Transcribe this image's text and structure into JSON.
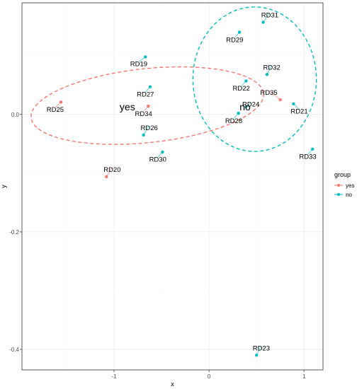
{
  "chart_data": {
    "type": "scatter",
    "xlabel": "x",
    "ylabel": "y",
    "xlim": [
      -1.97,
      1.2
    ],
    "ylim": [
      -0.435,
      0.19
    ],
    "x_ticks": [
      {
        "value": -1,
        "label": "-1"
      },
      {
        "value": 0,
        "label": "0"
      },
      {
        "value": 1,
        "label": "1"
      }
    ],
    "y_ticks": [
      {
        "value": 0.0,
        "label": "0.0"
      },
      {
        "value": -0.2,
        "label": "-0.2"
      },
      {
        "value": -0.4,
        "label": "-0.4"
      }
    ],
    "grid": true,
    "legend": {
      "title": "group",
      "placement": "right",
      "entries": [
        {
          "key": "yes",
          "label": "yes",
          "color": "#F8766D"
        },
        {
          "key": "no",
          "label": "no",
          "color": "#00BFC4"
        }
      ]
    },
    "series": [
      {
        "name": "yes",
        "color": "#F8766D",
        "points": [
          {
            "label": "RD25",
            "x": -1.56,
            "y": 0.021
          },
          {
            "label": "RD34",
            "x": -0.64,
            "y": 0.014
          },
          {
            "label": "RD20",
            "x": -1.08,
            "y": -0.106
          },
          {
            "label": "RD35",
            "x": 0.75,
            "y": 0.025
          }
        ],
        "ellipse": {
          "cx": -0.65,
          "cy": 0.015,
          "rx": 1.23,
          "ry": 0.063,
          "angle_deg": -6
        }
      },
      {
        "name": "no",
        "color": "#00BFC4",
        "points": [
          {
            "label": "RD31",
            "x": 0.57,
            "y": 0.157
          },
          {
            "label": "RD29",
            "x": 0.32,
            "y": 0.14
          },
          {
            "label": "RD19",
            "x": -0.67,
            "y": 0.098
          },
          {
            "label": "RD32",
            "x": 0.61,
            "y": 0.068
          },
          {
            "label": "RD22",
            "x": 0.39,
            "y": 0.057
          },
          {
            "label": "RD27",
            "x": -0.62,
            "y": 0.047
          },
          {
            "label": "RD24",
            "x": 0.39,
            "y": 0.013
          },
          {
            "label": "RD21",
            "x": 0.89,
            "y": 0.018
          },
          {
            "label": "RD28",
            "x": 0.31,
            "y": 0.002
          },
          {
            "label": "RD26",
            "x": -0.69,
            "y": -0.035
          },
          {
            "label": "RD30",
            "x": -0.49,
            "y": -0.064
          },
          {
            "label": "RD33",
            "x": 1.09,
            "y": -0.059
          },
          {
            "label": "RD23",
            "x": 0.5,
            "y": -0.41
          }
        ],
        "ellipse": {
          "cx": 0.48,
          "cy": 0.06,
          "rx": 0.65,
          "ry": 0.123,
          "angle_deg": 0
        }
      }
    ],
    "group_labels": [
      {
        "text": "yes",
        "x": -0.86,
        "y": 0.013,
        "color": "#000000"
      },
      {
        "text": "no",
        "x": 0.38,
        "y": 0.013,
        "color": "#000000"
      }
    ],
    "label_offsets": {
      "RD31": [
        0.07,
        0.012
      ],
      "RD29": [
        -0.05,
        -0.013
      ],
      "RD19": [
        -0.07,
        -0.012
      ],
      "RD32": [
        0.05,
        0.012
      ],
      "RD22": [
        -0.05,
        -0.013
      ],
      "RD27": [
        -0.05,
        -0.013
      ],
      "RD35": [
        -0.12,
        0.012
      ],
      "RD24": [
        0.05,
        0.004
      ],
      "RD21": [
        0.06,
        -0.013
      ],
      "RD28": [
        -0.05,
        -0.013
      ],
      "RD25": [
        -0.06,
        -0.013
      ],
      "RD34": [
        -0.05,
        -0.013
      ],
      "RD26": [
        0.06,
        0.012
      ],
      "RD30": [
        -0.05,
        -0.013
      ],
      "RD33": [
        -0.05,
        -0.013
      ],
      "RD20": [
        0.06,
        0.012
      ],
      "RD23": [
        0.05,
        0.012
      ]
    }
  }
}
